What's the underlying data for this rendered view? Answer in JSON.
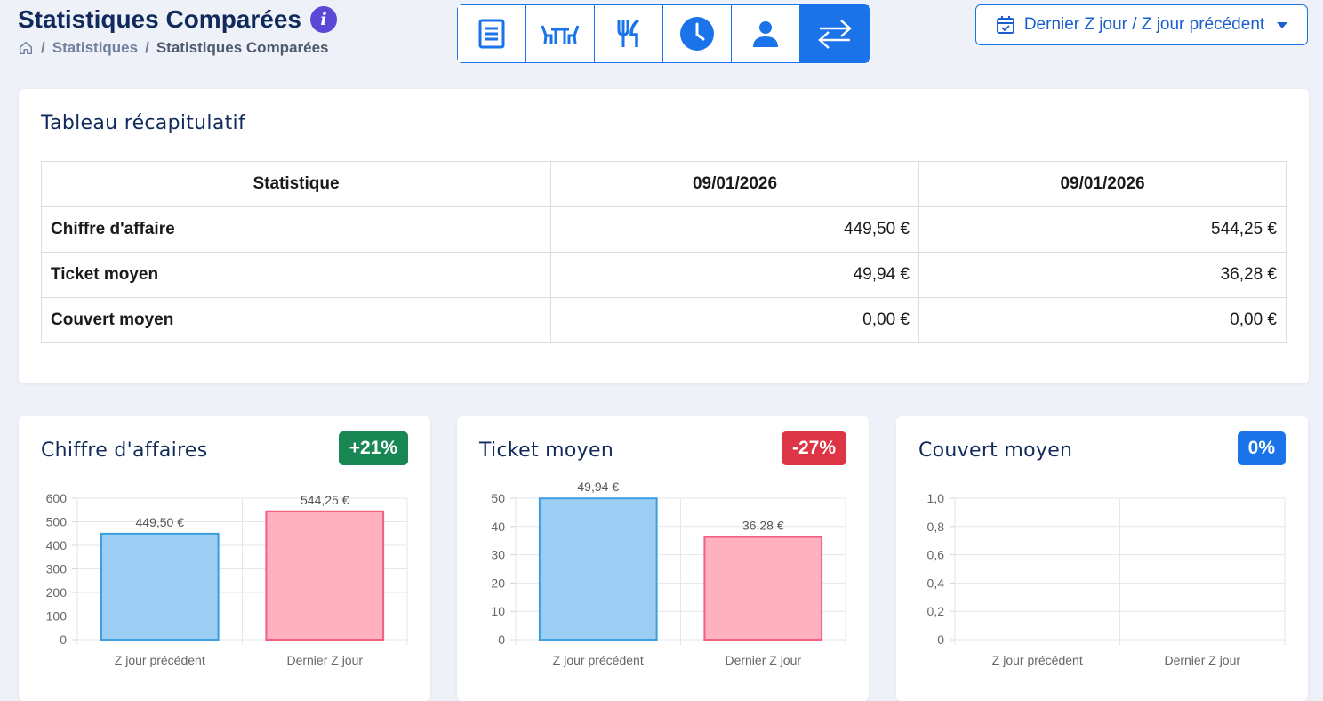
{
  "header": {
    "title": "Statistiques Comparées",
    "breadcrumb": [
      "Statistiques",
      "Statistiques Comparées"
    ]
  },
  "toolbar": {
    "buttons": [
      {
        "icon": "document-icon",
        "active": false
      },
      {
        "icon": "table-chairs-icon",
        "active": false
      },
      {
        "icon": "fork-knife-icon",
        "active": false
      },
      {
        "icon": "clock-icon",
        "active": false
      },
      {
        "icon": "user-icon",
        "active": false
      },
      {
        "icon": "swap-arrows-icon",
        "active": true
      }
    ],
    "accent": "#1a73e8"
  },
  "period_selector": {
    "label": "Dernier Z jour / Z jour précédent",
    "icon": "calendar-icon"
  },
  "summary": {
    "title": "Tableau récapitulatif",
    "columns": [
      "Statistique",
      "09/01/2026",
      "09/01/2026"
    ],
    "rows": [
      {
        "label": "Chiffre d'affaire",
        "a": "449,50 €",
        "b": "544,25 €"
      },
      {
        "label": "Ticket moyen",
        "a": "49,94 €",
        "b": "36,28 €"
      },
      {
        "label": "Couvert moyen",
        "a": "0,00 €",
        "b": "0,00 €"
      }
    ]
  },
  "chart_data": [
    {
      "type": "bar",
      "title": "Chiffre d'affaires",
      "badge": "+21%",
      "badge_color": "#198754",
      "categories": [
        "Z jour précédent",
        "Dernier Z jour"
      ],
      "values": [
        449.5,
        544.25
      ],
      "data_labels": [
        "449,50 €",
        "544,25 €"
      ],
      "ylim": [
        0,
        600
      ],
      "yticks": [
        "0",
        "100",
        "200",
        "300",
        "400",
        "500",
        "600"
      ],
      "colors": [
        "#9ccdf2",
        "#ffb0c1"
      ],
      "borders": [
        "#3a9ee0",
        "#f0607f"
      ],
      "grid": true
    },
    {
      "type": "bar",
      "title": "Ticket moyen",
      "badge": "-27%",
      "badge_color": "#dc3545",
      "categories": [
        "Z jour précédent",
        "Dernier Z jour"
      ],
      "values": [
        49.94,
        36.28
      ],
      "data_labels": [
        "49,94 €",
        "36,28 €"
      ],
      "ylim": [
        0,
        50
      ],
      "yticks": [
        "0",
        "10",
        "20",
        "30",
        "40",
        "50"
      ],
      "colors": [
        "#9ccdf2",
        "#ffb0c1"
      ],
      "borders": [
        "#3a9ee0",
        "#f0607f"
      ],
      "grid": true
    },
    {
      "type": "bar",
      "title": "Couvert moyen",
      "badge": "0%",
      "badge_color": "#1a73e8",
      "categories": [
        "Z jour précédent",
        "Dernier Z jour"
      ],
      "values": [
        0,
        0
      ],
      "data_labels": [],
      "ylim": [
        0,
        1
      ],
      "yticks": [
        "0",
        "0,2",
        "0,4",
        "0,6",
        "0,8",
        "1,0"
      ],
      "colors": [
        "#9ccdf2",
        "#ffb0c1"
      ],
      "borders": [
        "#3a9ee0",
        "#f0607f"
      ],
      "grid": true
    }
  ]
}
